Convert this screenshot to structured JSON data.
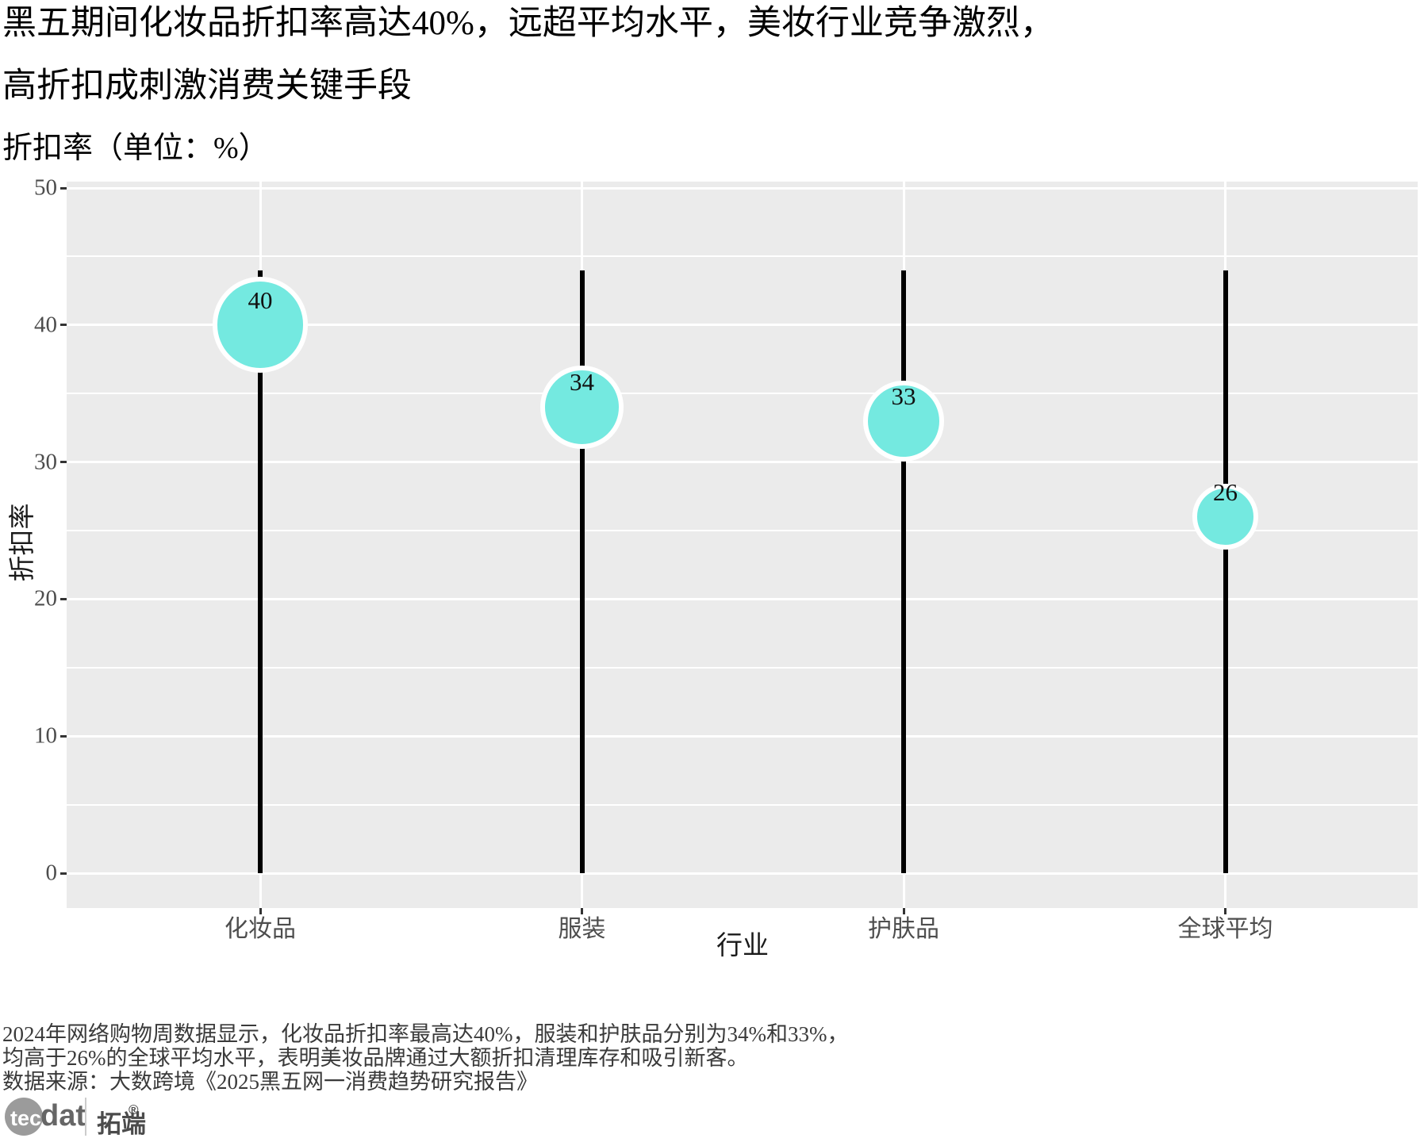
{
  "title": {
    "line1": "黑五期间化妆品折扣率高达40%，远超平均水平，美妆行业竞争激烈，",
    "line2": "高折扣成刺激消费关键手段"
  },
  "subtitle": "折扣率（单位：%）",
  "chart_data": {
    "type": "lollipop",
    "categories": [
      "化妆品",
      "服装",
      "护肤品",
      "全球平均"
    ],
    "values": [
      40,
      34,
      33,
      26
    ],
    "value_labels": [
      "40",
      "34",
      "33",
      "26"
    ],
    "stem_top": 44,
    "title": "折扣率（单位：%）",
    "xlabel": "行业",
    "ylabel": "折扣率",
    "ylim": [
      0,
      50
    ],
    "yticks": [
      0,
      10,
      20,
      30,
      40,
      50
    ],
    "yticks_minor": [
      5,
      15,
      25,
      35,
      45
    ],
    "grid": "on",
    "legend": "none",
    "colors": {
      "bubble_fill": "#74E9E0",
      "bubble_ring": "#FFFFFF",
      "stem": "#000000",
      "plot_bg": "#EBEBEB",
      "gridline": "#FFFFFF",
      "tick_label": "#4D4D4D",
      "axis_title": "#1A1A1A",
      "value_label": "#111111"
    }
  },
  "footer": {
    "line1": "2024年网络购物周数据显示，化妆品折扣率最高达40%，服装和护肤品分别为34%和33%，",
    "line2": "均高于26%的全球平均水平，表明美妆品牌通过大额折扣清理库存和吸引新客。",
    "line3": "数据来源：大数跨境《2025黑五网一消费趋势研究报告》"
  },
  "logo": {
    "tec": "tec",
    "dat": "dat",
    "brand": "拓端",
    "reg": "®"
  }
}
